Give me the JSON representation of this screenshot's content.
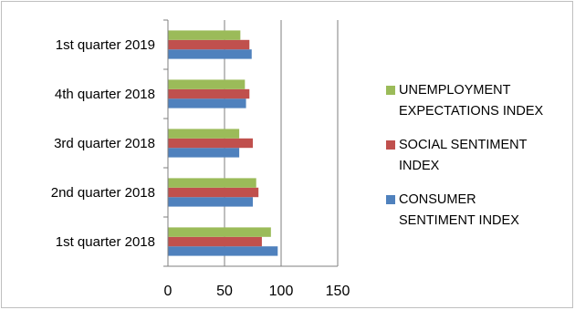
{
  "chart_data": {
    "type": "bar",
    "orientation": "horizontal",
    "categories": [
      "1st quarter 2018",
      "2nd quarter 2018",
      "3rd quarter 2018",
      "4th quarter 2018",
      "1st quarter 2019"
    ],
    "series": [
      {
        "name": "CONSUMER SENTIMENT INDEX",
        "values": [
          97,
          75,
          63,
          69,
          74
        ],
        "color": "#4f81bd"
      },
      {
        "name": "SOCIAL SENTIMENT INDEX",
        "values": [
          83,
          80,
          75,
          72,
          72
        ],
        "color": "#c0504d"
      },
      {
        "name": "UNEMPLOYMENT EXPECTATIONS INDEX",
        "values": [
          91,
          78,
          63,
          68,
          64
        ],
        "color": "#9bbb59"
      }
    ],
    "xlim": [
      0,
      150
    ],
    "xticks": [
      0,
      50,
      100,
      150
    ],
    "grid": "vertical",
    "legend_position": "right",
    "legend_order": [
      "UNEMPLOYMENT EXPECTATIONS INDEX",
      "SOCIAL SENTIMENT INDEX",
      "CONSUMER SENTIMENT INDEX"
    ],
    "legend_lines": [
      [
        "UNEMPLOYMENT",
        "EXPECTATIONS INDEX"
      ],
      [
        "SOCIAL SENTIMENT",
        "INDEX"
      ],
      [
        "CONSUMER",
        "SENTIMENT INDEX"
      ]
    ]
  }
}
